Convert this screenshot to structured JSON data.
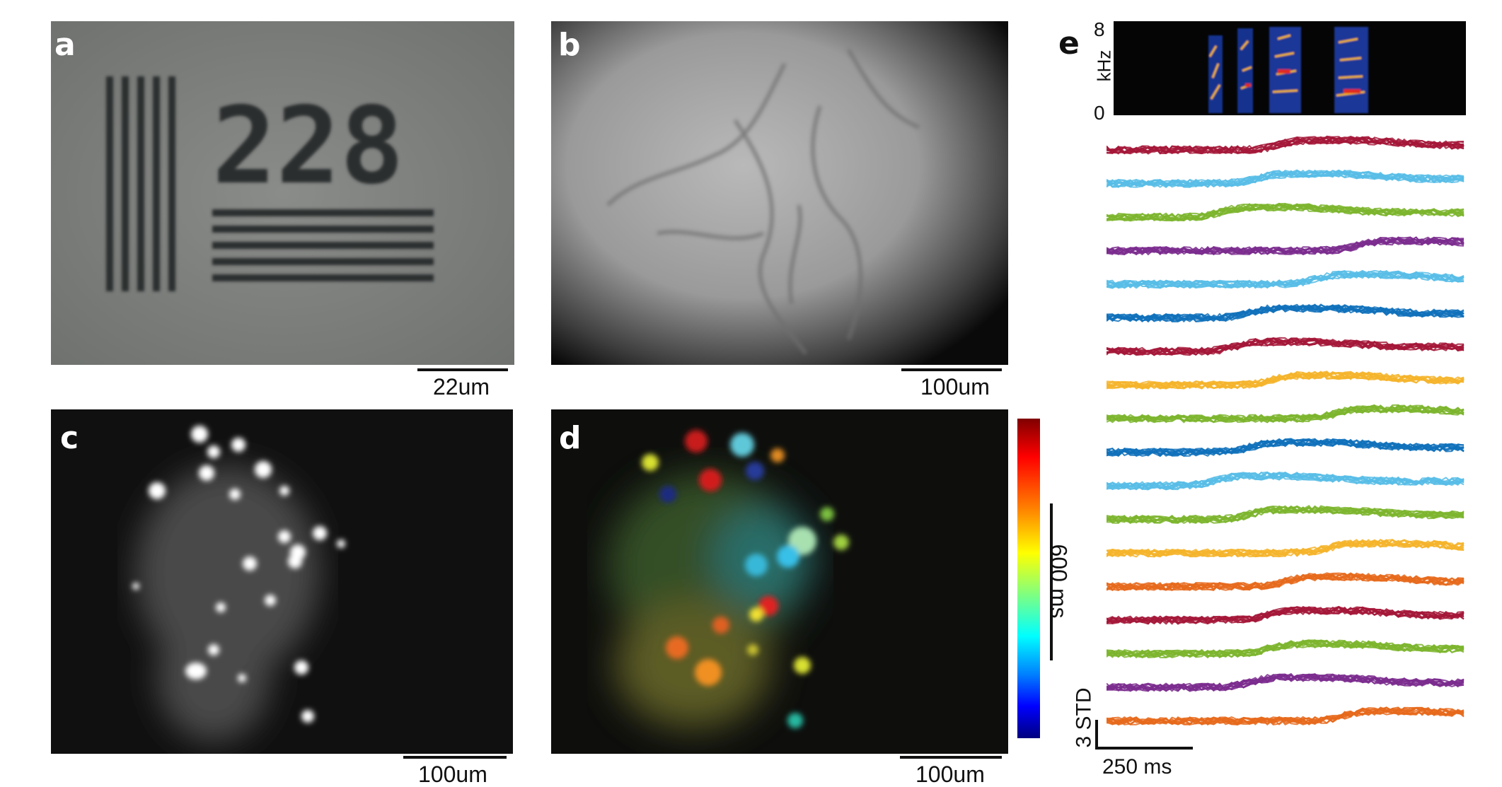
{
  "panels": {
    "a": {
      "label": "a",
      "scale": "22um"
    },
    "b": {
      "label": "b",
      "scale": "100um"
    },
    "c": {
      "label": "c",
      "scale": "100um"
    },
    "d": {
      "label": "d",
      "scale": "100um",
      "colorbar_scale": "600 ms"
    },
    "e": {
      "label": "e",
      "spec_top": "8",
      "spec_bottom": "0",
      "spec_unit": "kHz",
      "y_scale": "3 STD",
      "x_scale": "250 ms"
    }
  },
  "target_numbers": "228",
  "colors": {
    "trace_red": "#a51838",
    "trace_light_blue": "#58bde6",
    "trace_green": "#7db52e",
    "trace_purple": "#7b2d8e",
    "trace_blue": "#1171bb",
    "trace_yellow": "#f4b42c",
    "trace_orange": "#e66a1c"
  },
  "traces": [
    {
      "color": "#a51838",
      "rise": 0.48
    },
    {
      "color": "#58bde6",
      "rise": 0.42
    },
    {
      "color": "#7db52e",
      "rise": 0.32
    },
    {
      "color": "#7b2d8e",
      "rise": 0.7
    },
    {
      "color": "#58bde6",
      "rise": 0.58
    },
    {
      "color": "#1171bb",
      "rise": 0.4
    },
    {
      "color": "#a51838",
      "rise": 0.36
    },
    {
      "color": "#f4b42c",
      "rise": 0.46
    },
    {
      "color": "#7db52e",
      "rise": 0.64
    },
    {
      "color": "#1171bb",
      "rise": 0.4
    },
    {
      "color": "#58bde6",
      "rise": 0.3
    },
    {
      "color": "#7db52e",
      "rise": 0.4
    },
    {
      "color": "#f4b42c",
      "rise": 0.62
    },
    {
      "color": "#e66a1c",
      "rise": 0.5
    },
    {
      "color": "#a51838",
      "rise": 0.45
    },
    {
      "color": "#7db52e",
      "rise": 0.45
    },
    {
      "color": "#7b2d8e",
      "rise": 0.4
    },
    {
      "color": "#e66a1c",
      "rise": 0.66
    }
  ]
}
